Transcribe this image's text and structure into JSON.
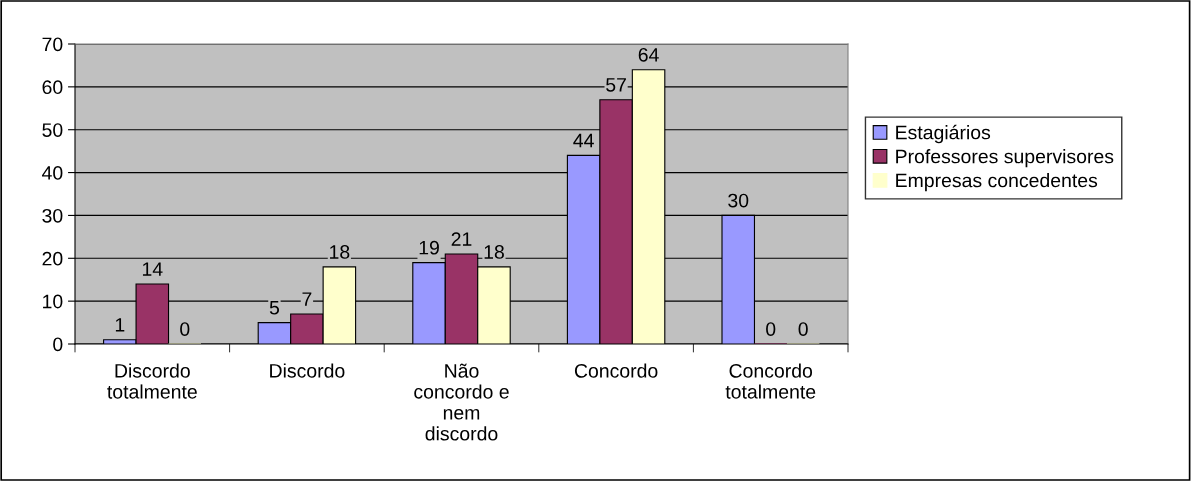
{
  "chart_data": {
    "type": "bar",
    "categories": [
      "Discordo\ntotalmente",
      "Discordo",
      "Não\nconcordo e\nnem\ndiscordo",
      "Concordo",
      "Concordo\ntotalmente"
    ],
    "series": [
      {
        "name": "Estagiários",
        "color": "#9999ff",
        "values": [
          1,
          5,
          19,
          44,
          30
        ]
      },
      {
        "name": "Professores supervisores",
        "color": "#993366",
        "values": [
          14,
          7,
          21,
          57,
          0
        ]
      },
      {
        "name": "Empresas concedentes",
        "color": "#ffffcc",
        "values": [
          0,
          18,
          18,
          64,
          0
        ]
      }
    ],
    "ylim": [
      0,
      70
    ],
    "yticks": [
      0,
      10,
      20,
      30,
      40,
      50,
      60,
      70
    ],
    "grid": "y",
    "legend": "right",
    "data_labels": true
  }
}
